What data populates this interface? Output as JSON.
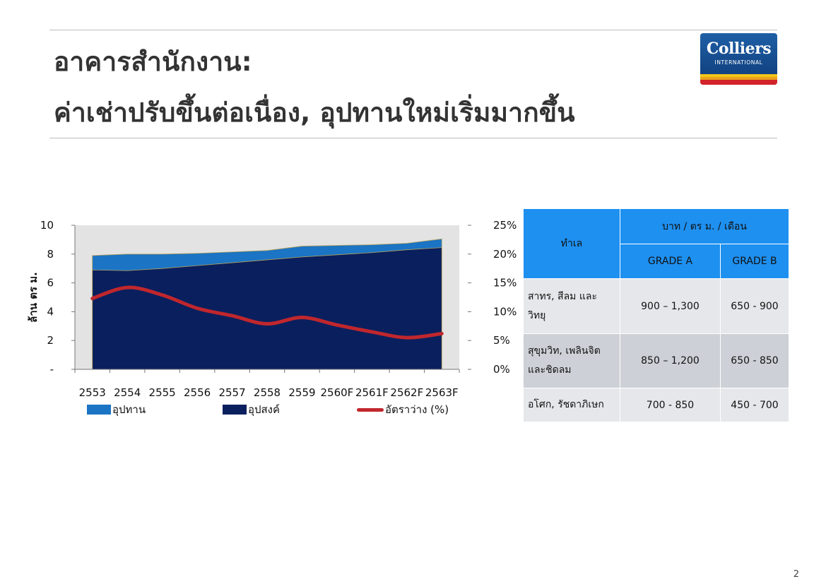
{
  "header": {
    "title_line1": "อาคารสำนักงาน:",
    "title_line2": "ค่าเช่าปรับขึ้นต่อเนื่อง, อุปทานใหม่เริ่มมากขึ้น",
    "logo": {
      "name": "Colliers",
      "sub": "INTERNATIONAL"
    }
  },
  "chart_data": {
    "type": "area",
    "categories": [
      "2553",
      "2554",
      "2555",
      "2556",
      "2557",
      "2558",
      "2559",
      "2560F",
      "2561F",
      "2562F",
      "2563F"
    ],
    "ylabel": "ล้าน ตร ม.",
    "ylim": [
      0,
      10
    ],
    "y_ticks": [
      "-",
      "2",
      "4",
      "6",
      "8",
      "10"
    ],
    "y2lim": [
      0,
      25
    ],
    "y2_ticks": [
      "0%",
      "5%",
      "10%",
      "15%",
      "20%",
      "25%"
    ],
    "grid": false,
    "legend_position": "bottom",
    "series": [
      {
        "name": "อุปทาน",
        "kind": "area",
        "axis": "left",
        "color": "#1b74c4",
        "values": [
          7.9,
          8.0,
          8.0,
          8.05,
          8.15,
          8.25,
          8.55,
          8.6,
          8.65,
          8.75,
          9.05
        ]
      },
      {
        "name": "อุปสงค์",
        "kind": "area",
        "axis": "left",
        "color": "#0a1f5e",
        "values": [
          6.9,
          6.85,
          7.0,
          7.2,
          7.4,
          7.6,
          7.8,
          7.95,
          8.1,
          8.3,
          8.45
        ]
      },
      {
        "name": "อัตราว่าง (%)",
        "kind": "line",
        "axis": "right",
        "color": "#c0272d",
        "values": [
          12.3,
          14.2,
          12.9,
          10.6,
          9.3,
          7.9,
          9.0,
          7.7,
          6.5,
          5.5,
          6.2
        ]
      }
    ],
    "plot_bg": "#e3e3e3"
  },
  "rent_table": {
    "header_location": "ทำเล",
    "header_unit": "บาท / ตร ม. / เดือน",
    "header_grade_a": "GRADE A",
    "header_grade_b": "GRADE B",
    "rows": [
      {
        "location": "สาทร, สีลม และ วิทยุ",
        "grade_a": "900 – 1,300",
        "grade_b": "650 - 900"
      },
      {
        "location": "สุขุมวิท, เพลินจิต และชิดลม",
        "grade_a": "850 – 1,200",
        "grade_b": "650 - 850"
      },
      {
        "location": "อโศก, รัชดาภิเษก",
        "grade_a": "700 - 850",
        "grade_b": "450 - 700"
      }
    ]
  },
  "footer": {
    "page_number": "2"
  }
}
